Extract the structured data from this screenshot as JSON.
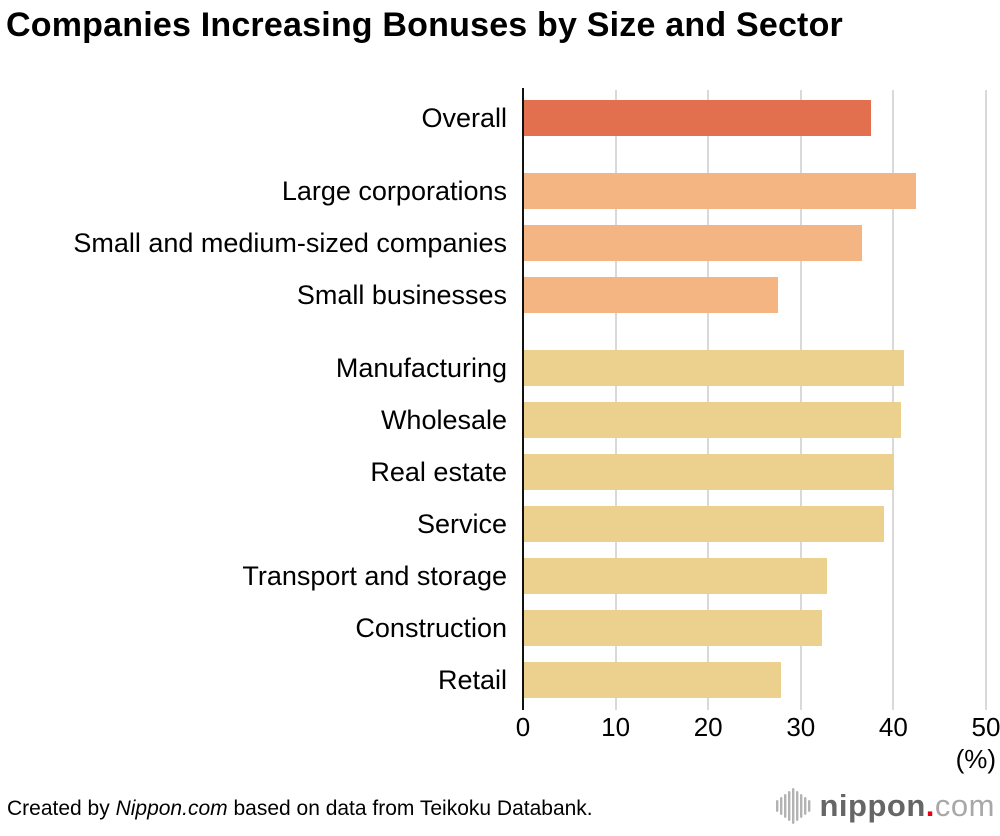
{
  "title": "Companies Increasing Bonuses by Size and Sector",
  "chart_data": {
    "type": "bar",
    "orientation": "horizontal",
    "title": "Companies Increasing Bonuses by Size and Sector",
    "xlabel": "(%)",
    "ylabel": "",
    "xlim": [
      0,
      50
    ],
    "xticks": [
      0,
      10,
      20,
      30,
      40,
      50
    ],
    "grid": true,
    "legend": "none",
    "groups": [
      {
        "name": "overall",
        "color": "#e2704f",
        "bars": [
          {
            "label": "Overall",
            "value": 37.5
          }
        ]
      },
      {
        "name": "by-size",
        "color": "#f4b583",
        "bars": [
          {
            "label": "Large corporations",
            "value": 42.3
          },
          {
            "label": "Small and medium-sized companies",
            "value": 36.5
          },
          {
            "label": "Small businesses",
            "value": 27.4
          }
        ]
      },
      {
        "name": "by-sector",
        "color": "#ecd18e",
        "bars": [
          {
            "label": "Manufacturing",
            "value": 41.0
          },
          {
            "label": "Wholesale",
            "value": 40.7
          },
          {
            "label": "Real estate",
            "value": 40.0
          },
          {
            "label": "Service",
            "value": 38.9
          },
          {
            "label": "Transport and storage",
            "value": 32.7
          },
          {
            "label": "Construction",
            "value": 32.2
          },
          {
            "label": "Retail",
            "value": 27.7
          }
        ]
      }
    ]
  },
  "colors": {
    "axis_line": "#111111",
    "gridline": "#d9d9d9",
    "logo_gray": "#b3b3b3",
    "logo_dot_red": "#e60012"
  },
  "footer": {
    "credit_prefix": "Created by ",
    "credit_source": "Nippon.com",
    "credit_suffix": " based on data from Teikoku Databank."
  },
  "logo": {
    "name": "nippon",
    "dot": ".",
    "tld": "com"
  }
}
